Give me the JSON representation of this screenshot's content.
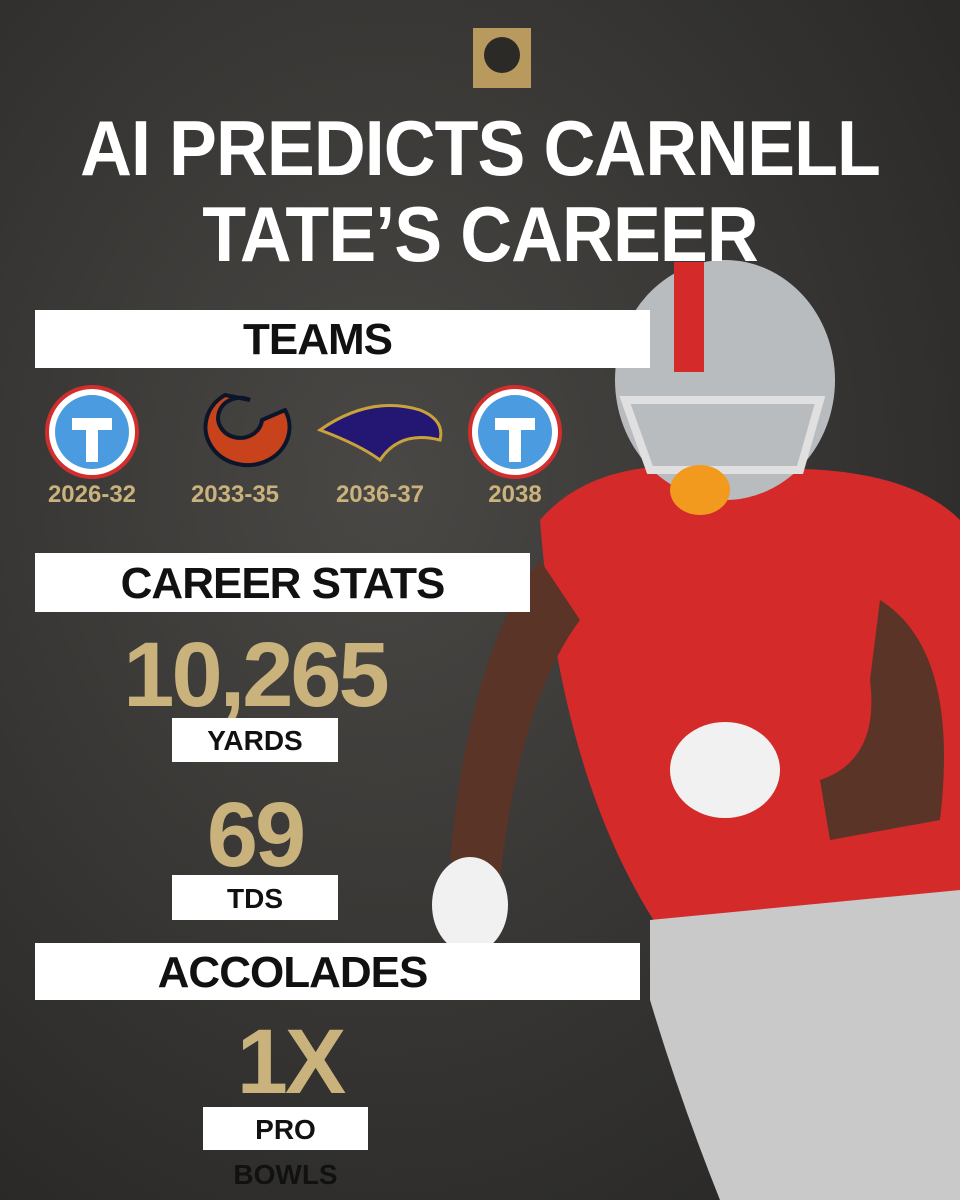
{
  "header": {
    "title": "AI PREDICTS CARNELL TATE’S CAREER"
  },
  "teams": {
    "heading": "TEAMS",
    "items": [
      {
        "years": "2026-32"
      },
      {
        "years": "2033-35"
      },
      {
        "years": "2036-37"
      },
      {
        "years": "2038"
      }
    ]
  },
  "career_stats": {
    "heading": "CAREER STATS",
    "stats": [
      {
        "value": "10,265",
        "label": "YARDS"
      },
      {
        "value": "69",
        "label": "TDS"
      }
    ]
  },
  "accolades": {
    "heading": "ACCOLADES",
    "items": [
      {
        "value": "1X",
        "label": "PRO BOWLS"
      }
    ]
  }
}
